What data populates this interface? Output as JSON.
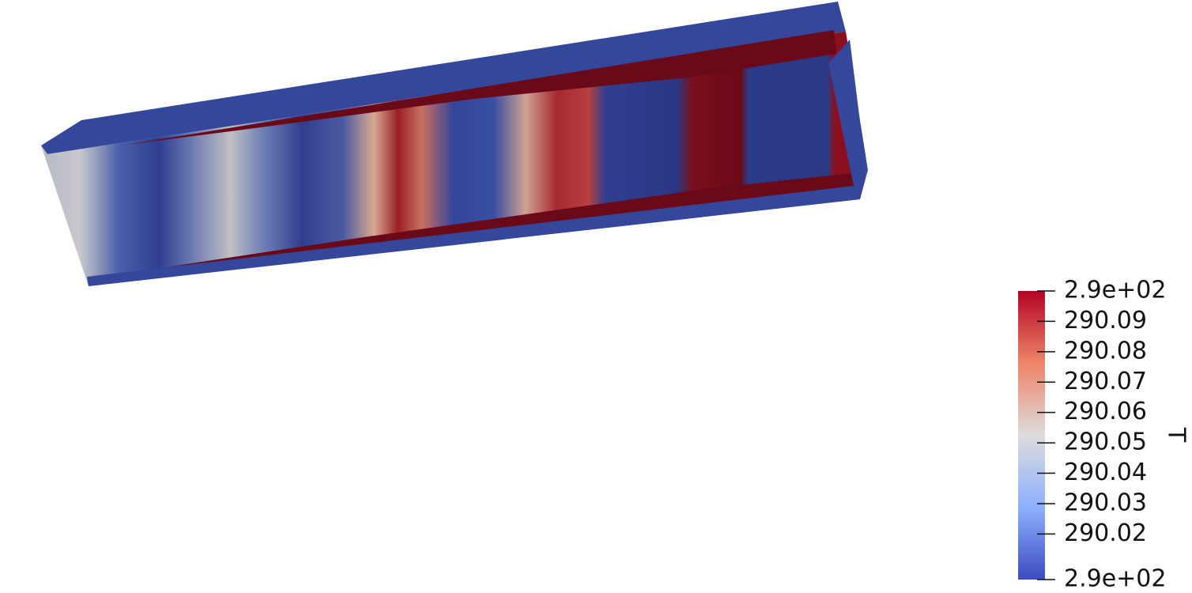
{
  "colorbar": {
    "title": "T",
    "range": [
      290.005,
      290.1
    ],
    "ticks": [
      {
        "value": 290.1,
        "label": "2.9e+02"
      },
      290.09,
      290.08,
      290.07,
      290.06,
      290.05,
      290.04,
      290.03,
      290.02,
      {
        "value": 290.005,
        "label": "2.9e+02"
      }
    ]
  }
}
